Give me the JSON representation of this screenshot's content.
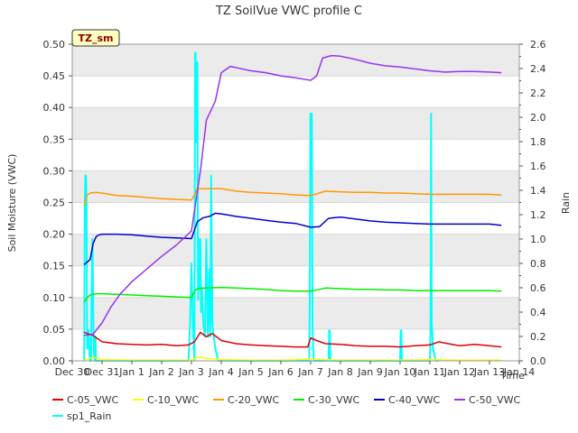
{
  "chart_data": {
    "type": "line",
    "title": "TZ SoilVue VWC profile C",
    "badge": "TZ_sm",
    "xlabel": "Time",
    "ylabel": "Soil Moisture (VWC)",
    "y2label": "Rain",
    "xlim": [
      -1,
      14
    ],
    "ylim": [
      0,
      0.5
    ],
    "y2lim": [
      0,
      2.6
    ],
    "x_ticks": [
      {
        "v": -1,
        "label": "Dec 30"
      },
      {
        "v": 0,
        "label": "Dec 31"
      },
      {
        "v": 1,
        "label": "Jan 1"
      },
      {
        "v": 2,
        "label": "Jan 2"
      },
      {
        "v": 3,
        "label": "Jan 3"
      },
      {
        "v": 4,
        "label": "Jan 4"
      },
      {
        "v": 5,
        "label": "Jan 5"
      },
      {
        "v": 6,
        "label": "Jan 6"
      },
      {
        "v": 7,
        "label": "Jan 7"
      },
      {
        "v": 8,
        "label": "Jan 8"
      },
      {
        "v": 9,
        "label": "Jan 9"
      },
      {
        "v": 10,
        "label": "Jan 10"
      },
      {
        "v": 11,
        "label": "Jan 11"
      },
      {
        "v": 12,
        "label": "Jan 12"
      },
      {
        "v": 13,
        "label": "Jan 13"
      },
      {
        "v": 14,
        "label": "Jan 14"
      }
    ],
    "y_ticks": [
      "0.00",
      "0.05",
      "0.10",
      "0.15",
      "0.20",
      "0.25",
      "0.30",
      "0.35",
      "0.40",
      "0.45",
      "0.50"
    ],
    "y2_ticks": [
      "0.0",
      "0.2",
      "0.4",
      "0.6",
      "0.8",
      "1.0",
      "1.2",
      "1.4",
      "1.6",
      "1.8",
      "2.0",
      "2.2",
      "2.4",
      "2.6"
    ],
    "grid": true,
    "legend_position": "bottom",
    "series": [
      {
        "name": "C-05_VWC",
        "color": "#e00000",
        "axis": "left",
        "x": [
          -0.6,
          -0.3,
          0.0,
          0.5,
          1.0,
          1.5,
          2.0,
          2.5,
          2.9,
          3.1,
          3.3,
          3.5,
          3.7,
          4.0,
          4.5,
          5.0,
          5.5,
          6.0,
          6.5,
          6.9,
          7.0,
          7.2,
          7.5,
          8.0,
          8.5,
          9.0,
          9.5,
          10.0,
          10.5,
          11.0,
          11.3,
          11.5,
          12.0,
          12.5,
          13.0,
          13.4
        ],
        "y": [
          0.045,
          0.04,
          0.03,
          0.027,
          0.026,
          0.025,
          0.026,
          0.024,
          0.025,
          0.03,
          0.045,
          0.038,
          0.043,
          0.032,
          0.027,
          0.025,
          0.024,
          0.023,
          0.022,
          0.022,
          0.036,
          0.032,
          0.027,
          0.026,
          0.024,
          0.023,
          0.023,
          0.022,
          0.024,
          0.025,
          0.03,
          0.028,
          0.024,
          0.026,
          0.024,
          0.022
        ]
      },
      {
        "name": "C-10_VWC",
        "color": "#ffff00",
        "axis": "left",
        "x": [
          -0.6,
          -0.3,
          0.0,
          1.0,
          2.0,
          3.0,
          3.2,
          3.5,
          4.0,
          5.0,
          6.0,
          7.0,
          8.0,
          9.0,
          10.0,
          11.0,
          12.0,
          13.0,
          13.4
        ],
        "y": [
          0.001,
          0.006,
          0.002,
          0.001,
          0.001,
          0.001,
          0.006,
          0.004,
          0.002,
          0.001,
          0.001,
          0.003,
          0.001,
          0.001,
          0.001,
          0.002,
          0.001,
          0.001,
          0.001
        ]
      },
      {
        "name": "C-20_VWC",
        "color": "#ff9900",
        "axis": "left",
        "x": [
          -0.6,
          -0.5,
          -0.4,
          -0.2,
          0.0,
          0.5,
          1.0,
          1.5,
          2.0,
          2.5,
          3.0,
          3.1,
          3.2,
          3.5,
          4.0,
          4.5,
          5.0,
          5.5,
          6.0,
          6.5,
          7.0,
          7.5,
          8.0,
          8.5,
          9.0,
          9.5,
          10.0,
          10.5,
          11.0,
          11.5,
          12.0,
          12.5,
          13.0,
          13.4
        ],
        "y": [
          0.245,
          0.262,
          0.265,
          0.266,
          0.265,
          0.261,
          0.26,
          0.258,
          0.256,
          0.255,
          0.254,
          0.262,
          0.272,
          0.272,
          0.272,
          0.268,
          0.266,
          0.265,
          0.264,
          0.262,
          0.261,
          0.268,
          0.267,
          0.266,
          0.266,
          0.265,
          0.265,
          0.264,
          0.263,
          0.263,
          0.263,
          0.263,
          0.263,
          0.262
        ]
      },
      {
        "name": "C-30_VWC",
        "color": "#00ee00",
        "axis": "left",
        "x": [
          -0.6,
          -0.5,
          -0.4,
          -0.2,
          0.0,
          0.5,
          1.0,
          1.5,
          2.0,
          2.5,
          3.0,
          3.1,
          3.2,
          3.5,
          4.0,
          4.5,
          5.0,
          5.5,
          6.0,
          6.5,
          7.0,
          7.5,
          8.0,
          8.5,
          9.0,
          9.5,
          10.0,
          10.5,
          11.0,
          11.5,
          12.0,
          12.5,
          13.0,
          13.4
        ],
        "y": [
          0.092,
          0.1,
          0.104,
          0.106,
          0.106,
          0.105,
          0.104,
          0.103,
          0.102,
          0.101,
          0.1,
          0.11,
          0.114,
          0.115,
          0.116,
          0.115,
          0.114,
          0.113,
          0.111,
          0.11,
          0.11,
          0.115,
          0.114,
          0.113,
          0.113,
          0.112,
          0.112,
          0.111,
          0.111,
          0.111,
          0.111,
          0.111,
          0.111,
          0.11
        ]
      },
      {
        "name": "C-40_VWC",
        "color": "#0000cc",
        "axis": "left",
        "x": [
          -0.6,
          -0.4,
          -0.3,
          -0.2,
          -0.1,
          0.0,
          0.5,
          1.0,
          1.5,
          2.0,
          2.5,
          3.0,
          3.2,
          3.4,
          3.6,
          3.8,
          4.0,
          4.5,
          5.0,
          5.5,
          6.0,
          6.5,
          7.0,
          7.3,
          7.6,
          8.0,
          8.5,
          9.0,
          9.5,
          10.0,
          10.5,
          11.0,
          11.5,
          12.0,
          12.5,
          13.0,
          13.4
        ],
        "y": [
          0.152,
          0.16,
          0.185,
          0.196,
          0.199,
          0.2,
          0.2,
          0.199,
          0.197,
          0.195,
          0.194,
          0.193,
          0.22,
          0.226,
          0.228,
          0.233,
          0.232,
          0.228,
          0.225,
          0.222,
          0.219,
          0.217,
          0.211,
          0.212,
          0.225,
          0.227,
          0.224,
          0.221,
          0.219,
          0.218,
          0.217,
          0.216,
          0.216,
          0.216,
          0.216,
          0.216,
          0.214
        ]
      },
      {
        "name": "C-50_VWC",
        "color": "#9933ee",
        "axis": "left",
        "x": [
          -0.6,
          -0.3,
          0.0,
          0.3,
          0.6,
          1.0,
          1.5,
          2.0,
          2.5,
          3.0,
          3.3,
          3.5,
          3.8,
          4.0,
          4.3,
          4.6,
          5.0,
          5.5,
          6.0,
          6.5,
          7.0,
          7.2,
          7.4,
          7.7,
          8.0,
          8.5,
          9.0,
          9.5,
          10.0,
          10.5,
          11.0,
          11.5,
          12.0,
          12.5,
          13.0,
          13.4
        ],
        "y": [
          0.04,
          0.042,
          0.06,
          0.085,
          0.105,
          0.125,
          0.145,
          0.165,
          0.183,
          0.205,
          0.3,
          0.38,
          0.41,
          0.455,
          0.465,
          0.462,
          0.458,
          0.455,
          0.45,
          0.447,
          0.443,
          0.45,
          0.478,
          0.482,
          0.481,
          0.476,
          0.47,
          0.466,
          0.464,
          0.461,
          0.458,
          0.456,
          0.457,
          0.457,
          0.456,
          0.455
        ]
      },
      {
        "name": "sp1_Rain",
        "color": "#00ffff",
        "axis": "right",
        "x": [
          -0.6,
          -0.58,
          -0.56,
          -0.54,
          -0.52,
          -0.5,
          -0.48,
          -0.45,
          -0.42,
          -0.4,
          -0.37,
          -0.35,
          -0.32,
          -0.3,
          -0.28,
          -0.25,
          -0.22,
          -0.2,
          -0.15,
          -0.1,
          0.0,
          2.9,
          2.95,
          3.0,
          3.05,
          3.1,
          3.12,
          3.14,
          3.16,
          3.18,
          3.2,
          3.22,
          3.25,
          3.28,
          3.3,
          3.32,
          3.35,
          3.4,
          3.45,
          3.5,
          3.55,
          3.6,
          3.63,
          3.66,
          3.7,
          3.75,
          3.8,
          3.9,
          6.95,
          6.97,
          6.99,
          7.0,
          7.02,
          7.04,
          7.06,
          7.1,
          7.2,
          7.6,
          7.62,
          7.64,
          7.66,
          10.0,
          10.02,
          10.04,
          10.06,
          10.1,
          11.0,
          11.02,
          11.04,
          11.06,
          11.08,
          11.1,
          11.2,
          11.3
        ],
        "y": [
          0,
          1.3,
          1.52,
          1.52,
          1.3,
          0.1,
          0.15,
          0.25,
          0.05,
          0,
          0,
          0.6,
          1.0,
          0.5,
          0.1,
          0,
          0.2,
          0,
          0,
          0,
          0,
          0,
          0.3,
          0.8,
          0.3,
          0,
          2.53,
          2.53,
          1.8,
          2.3,
          2.45,
          0.5,
          1.0,
          0.6,
          1.0,
          0.4,
          0.6,
          0.3,
          0.2,
          1.0,
          0.2,
          0.75,
          0.2,
          1.52,
          0.3,
          0.2,
          0.1,
          0,
          0,
          0.5,
          2.03,
          2.03,
          2.03,
          2.03,
          0.3,
          0,
          0,
          0,
          0.25,
          0.25,
          0,
          0,
          0.25,
          0.25,
          0,
          0,
          0,
          0.25,
          2.03,
          0.3,
          0.25,
          0.1,
          0,
          0
        ]
      }
    ]
  }
}
